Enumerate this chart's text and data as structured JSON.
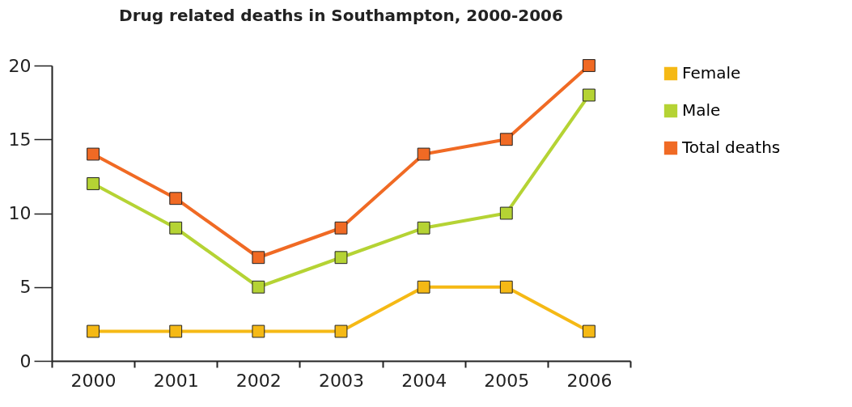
{
  "chart_data": {
    "type": "line",
    "title": "Drug related deaths in Southampton, 2000-2006",
    "categories": [
      "2000",
      "2001",
      "2002",
      "2003",
      "2004",
      "2005",
      "2006"
    ],
    "series": [
      {
        "name": "Female",
        "color": "#f5b915",
        "values": [
          2,
          2,
          2,
          2,
          5,
          5,
          2
        ]
      },
      {
        "name": "Male",
        "color": "#b5d334",
        "values": [
          12,
          9,
          5,
          7,
          9,
          10,
          18
        ]
      },
      {
        "name": "Total deaths",
        "color": "#f06a24",
        "values": [
          14,
          11,
          7,
          9,
          14,
          15,
          20
        ]
      }
    ],
    "ylim": [
      0,
      20
    ],
    "yticks": [
      0,
      5,
      10,
      15,
      20
    ],
    "grid": false,
    "legend": "top right",
    "marker": "square",
    "line_style": "solid"
  }
}
